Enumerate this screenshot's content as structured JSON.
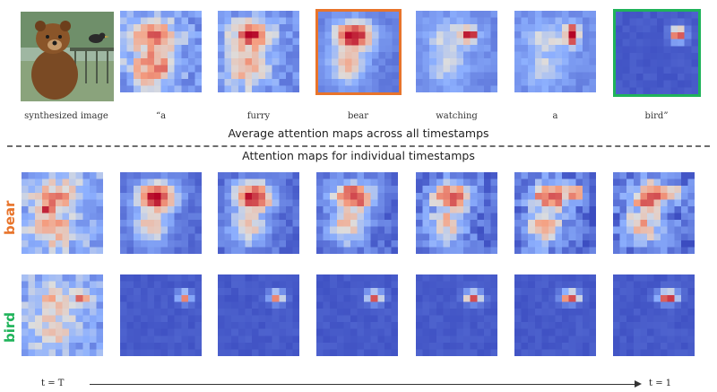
{
  "top_row": {
    "synth_caption": "synthesized image",
    "words": [
      "“a",
      "furry",
      "bear",
      "watching",
      "a",
      "bird”"
    ]
  },
  "section_titles": {
    "average": "Average attention maps across all timestamps",
    "individual": "Attention maps for individual  timestamps"
  },
  "row_labels": {
    "bear": "bear",
    "bird": "bird"
  },
  "timeline": {
    "start": "t = T",
    "end": "t = 1"
  },
  "colors": {
    "bear_label": "#e8742b",
    "bird_label": "#1fb35a",
    "map_low": "#3b4cc0",
    "map_high": "#b40426"
  }
}
